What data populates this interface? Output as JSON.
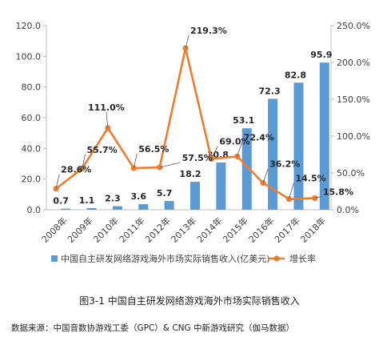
{
  "chart_data": {
    "type": "bar",
    "categories": [
      "2008年",
      "2009年",
      "2010年",
      "2011年",
      "2012年",
      "2013年",
      "2014年",
      "2015年",
      "2016年",
      "2017年",
      "2018年"
    ],
    "series": [
      {
        "name": "中国自主研发网络游戏海外市场实际销售收入(亿美元)",
        "kind": "bar",
        "axis": "left",
        "values": [
          0.7,
          1.1,
          2.3,
          3.6,
          5.7,
          18.2,
          30.8,
          53.1,
          72.3,
          82.8,
          95.9
        ],
        "labels": [
          "0.7",
          "1.1",
          "2.3",
          "3.6",
          "5.7",
          "18.2",
          "30.8",
          "53.1",
          "72.3",
          "82.8",
          "95.9"
        ],
        "color": "#5b9bd5"
      },
      {
        "name": "增长率",
        "kind": "line",
        "axis": "right",
        "values": [
          28.6,
          55.7,
          111.0,
          56.5,
          57.5,
          219.3,
          69.0,
          72.4,
          36.2,
          14.5,
          15.8
        ],
        "labels": [
          "28.6%",
          "55.7%",
          "111.0%",
          "56.5%",
          "57.5%",
          "219.3%",
          "69.0%",
          "72.4%",
          "36.2%",
          "14.5%",
          "15.8%"
        ],
        "color": "#ed7d31"
      }
    ],
    "ylim_left": [
      0,
      120
    ],
    "yticks_left": [
      "0.0",
      "20.0",
      "40.0",
      "60.0",
      "80.0",
      "100.0",
      "120.0"
    ],
    "ylim_right": [
      0,
      250
    ],
    "yticks_right": [
      "0.0%",
      "50.0%",
      "100.0%",
      "150.0%",
      "200.0%",
      "250.0%"
    ],
    "grid": false,
    "legend_position": "bottom"
  },
  "caption": "图3-1  中国自主研发网络游戏海外市场实际销售收入",
  "source": "数据来源：中国音数协游戏工委（GPC）& CNG 中新游戏研究（伽马数据）"
}
